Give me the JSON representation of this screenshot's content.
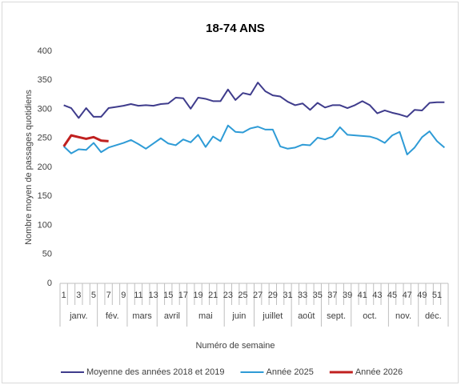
{
  "chart_data": {
    "type": "line",
    "title": "18-74 ANS",
    "y_label": "Nombre moyen de passages quotidiens",
    "x_label": "Numéro de semaine",
    "categories": [
      "1",
      null,
      "3",
      null,
      "5",
      null,
      "7",
      null,
      "9",
      null,
      "11",
      null,
      "13",
      null,
      "15",
      null,
      "17",
      null,
      "19",
      null,
      "21",
      null,
      "23",
      null,
      "25",
      null,
      "27",
      null,
      "29",
      null,
      "31",
      null,
      "33",
      null,
      "35",
      null,
      "37",
      null,
      "39",
      null,
      "41",
      null,
      "43",
      null,
      "45",
      null,
      "47",
      null,
      "49",
      null,
      "51",
      null
    ],
    "month_groups": [
      {
        "label": "janv.",
        "first": 1,
        "last": 5
      },
      {
        "label": "fév.",
        "first": 6,
        "last": 9
      },
      {
        "label": "mars",
        "first": 10,
        "last": 13
      },
      {
        "label": "avril",
        "first": 14,
        "last": 17
      },
      {
        "label": "mai",
        "first": 18,
        "last": 22
      },
      {
        "label": "juin",
        "first": 23,
        "last": 26
      },
      {
        "label": "juillet",
        "first": 27,
        "last": 31
      },
      {
        "label": "août",
        "first": 32,
        "last": 35
      },
      {
        "label": "sept.",
        "first": 36,
        "last": 39
      },
      {
        "label": "oct.",
        "first": 40,
        "last": 44
      },
      {
        "label": "nov.",
        "first": 45,
        "last": 48
      },
      {
        "label": "déc.",
        "first": 49,
        "last": 52
      }
    ],
    "series": [
      {
        "name": "Moyenne des années 2018 et 2019",
        "color": "#3f3c8c",
        "values": [
          307,
          302,
          285,
          302,
          287,
          287,
          302,
          304,
          306,
          309,
          306,
          307,
          306,
          309,
          310,
          320,
          319,
          301,
          320,
          318,
          314,
          314,
          334,
          316,
          328,
          325,
          346,
          331,
          324,
          322,
          313,
          307,
          310,
          299,
          311,
          303,
          307,
          307,
          302,
          307,
          314,
          307,
          293,
          298,
          294,
          291,
          287,
          299,
          298,
          311,
          312,
          312
        ]
      },
      {
        "name": "Année 2025",
        "color": "#2e9bd6",
        "values": [
          236,
          224,
          231,
          230,
          242,
          226,
          234,
          238,
          242,
          247,
          240,
          232,
          241,
          250,
          241,
          238,
          248,
          243,
          256,
          235,
          253,
          245,
          272,
          261,
          260,
          267,
          270,
          265,
          265,
          236,
          232,
          234,
          239,
          238,
          251,
          248,
          253,
          269,
          256,
          255,
          254,
          253,
          249,
          242,
          255,
          261,
          222,
          234,
          252,
          262,
          245,
          234
        ]
      },
      {
        "name": "Année 2026",
        "color": "#c0201f",
        "values": [
          236,
          255,
          252,
          249,
          252,
          246,
          245,
          null,
          null,
          null,
          null,
          null,
          null,
          null,
          null,
          null,
          null,
          null,
          null,
          null,
          null,
          null,
          null,
          null,
          null,
          null,
          null,
          null,
          null,
          null,
          null,
          null,
          null,
          null,
          null,
          null,
          null,
          null,
          null,
          null,
          null,
          null,
          null,
          null,
          null,
          null,
          null,
          null,
          null,
          null,
          null,
          null
        ]
      }
    ],
    "ylim": [
      0,
      400
    ],
    "yticks": [
      0,
      50,
      100,
      150,
      200,
      250,
      300,
      350,
      400
    ],
    "grid": false,
    "legend": "bottom"
  }
}
